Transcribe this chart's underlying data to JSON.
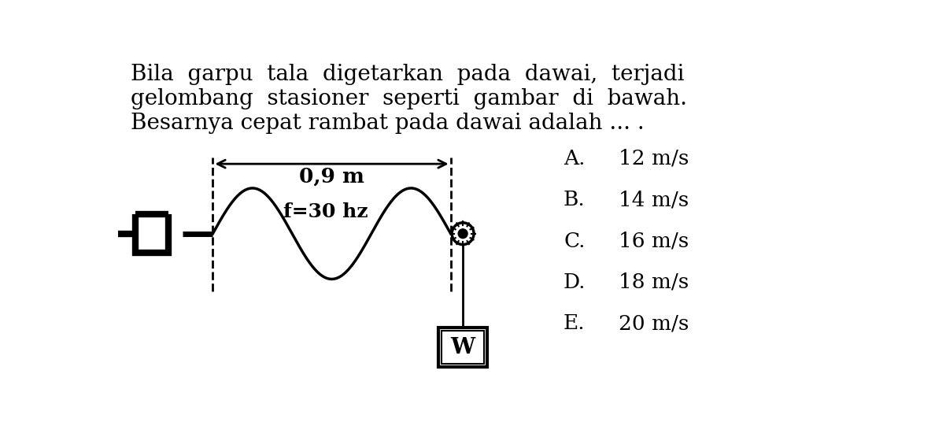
{
  "title_line1": "Bila  garpu  tala  digetarkan  pada  dawai,  terjadi",
  "title_line2": "gelombang  stasioner  seperti  gambar  di  bawah.",
  "title_line3": "Besarnya cepat rambat pada dawai adalah ... .",
  "wave_length_label": "0,9 m",
  "freq_label": "f=30 hz",
  "options_letter": [
    "A.",
    "B.",
    "C.",
    "D.",
    "E."
  ],
  "options_value": [
    "12 m/s",
    "14 m/s",
    "16 m/s",
    "18 m/s",
    "20 m/s"
  ],
  "background_color": "#ffffff",
  "text_color": "#000000",
  "wave_color": "#000000",
  "title_fontsize": 20,
  "label_fontsize": 16,
  "option_fontsize": 19
}
